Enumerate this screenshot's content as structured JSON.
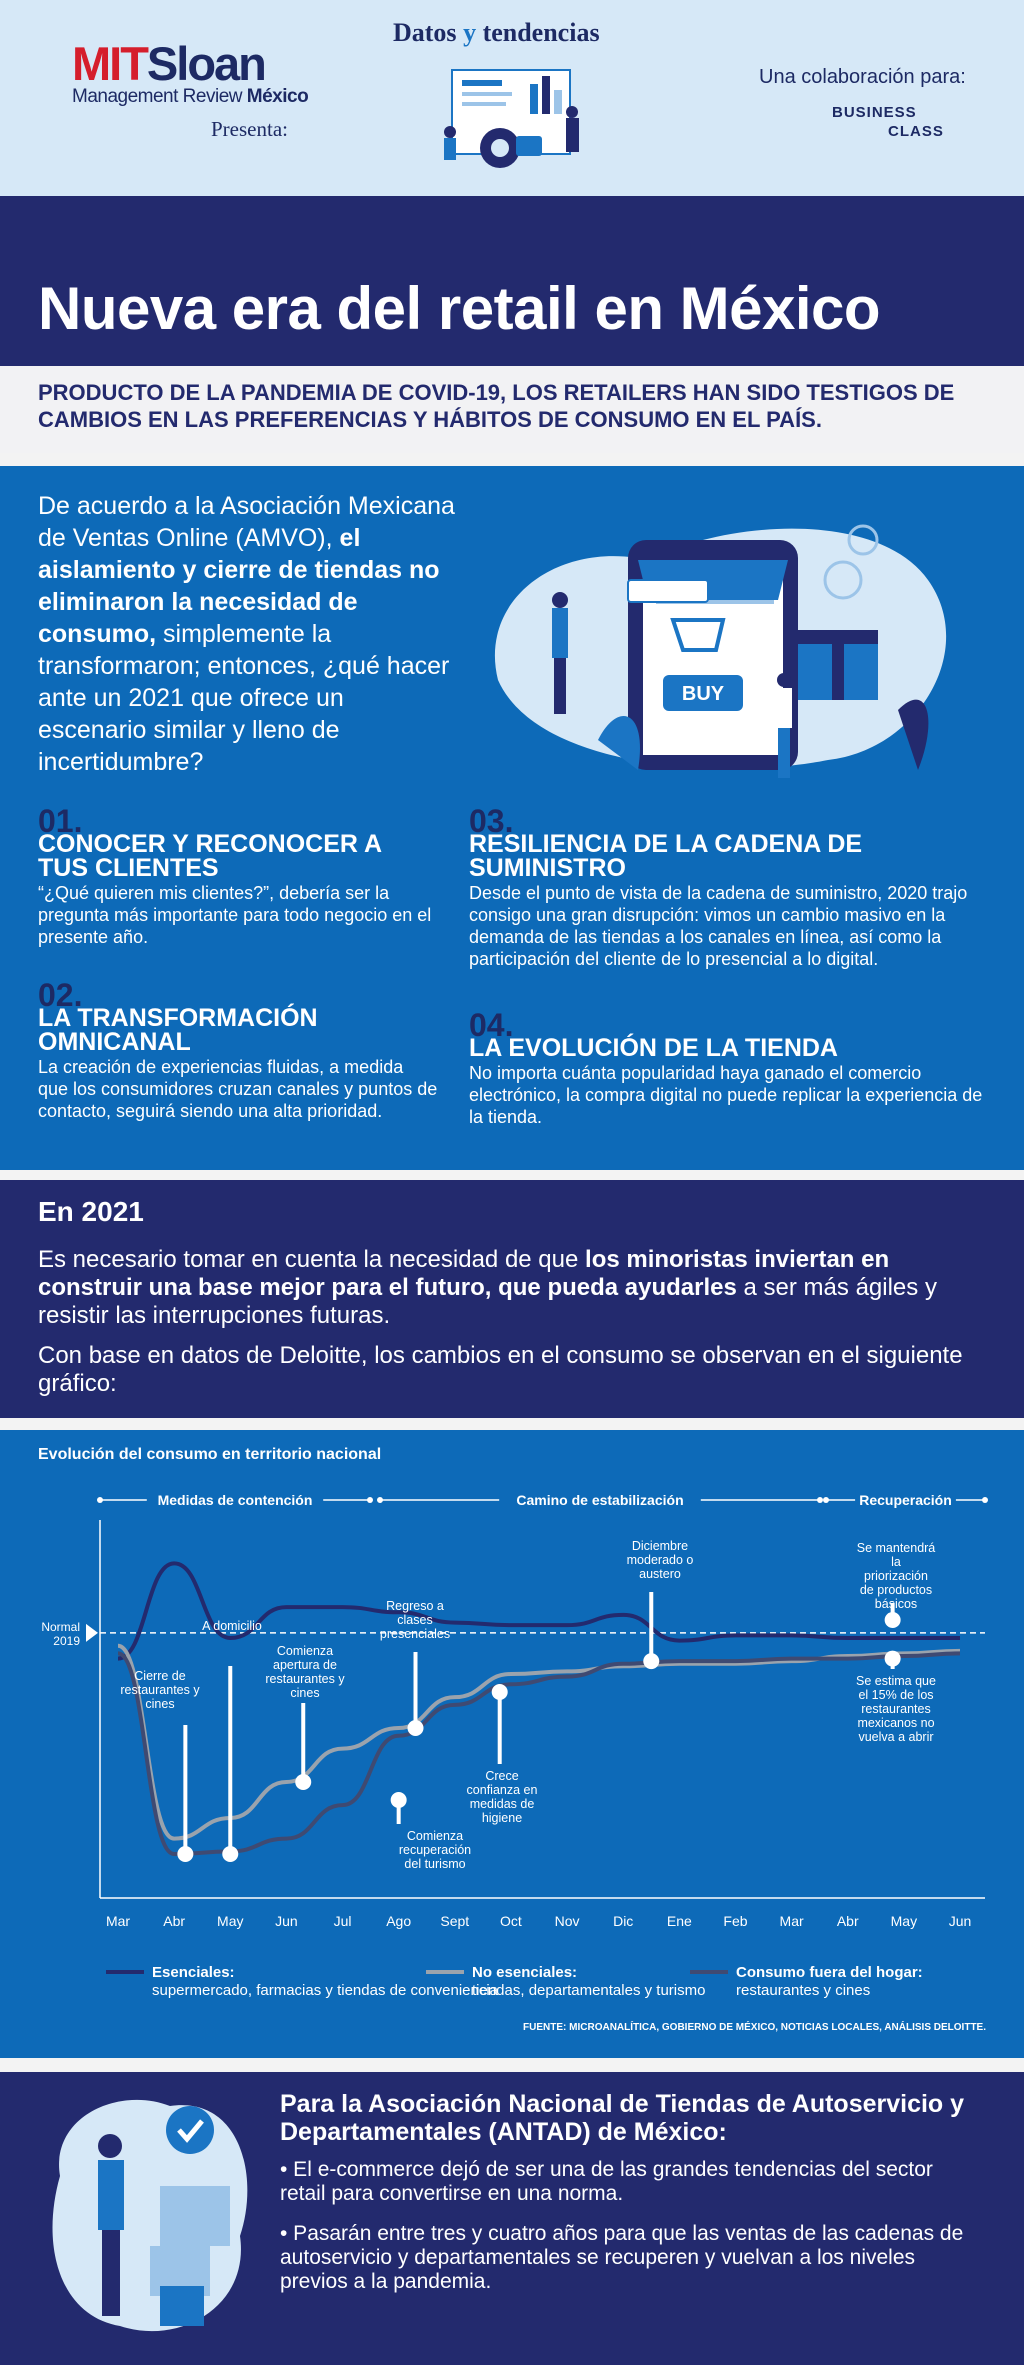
{
  "header": {
    "logo_mit": "MIT",
    "logo_sloan": "Sloan",
    "logo_mgmt": "Management Review",
    "logo_mexico": "México",
    "presenta": "Presenta:",
    "datos": "Datos",
    "y": "y",
    "tendencias": "tendencias",
    "collab": "Una colaboración para:",
    "business": "BUSINESS",
    "class": "CLASS"
  },
  "title": "Nueva era del retail en México",
  "subtitle": "PRODUCTO DE LA PANDEMIA DE COVID-19, LOS RETAILERS HAN SIDO TESTIGOS DE CAMBIOS EN LAS PREFERENCIAS Y HÁBITOS DE CONSUMO EN EL PAÍS.",
  "intro": {
    "p_a": "De acuerdo a la Asociación Mexicana de Ventas Online (AMVO),",
    "p_b": "el aislamiento y cierre de tiendas no eliminaron la necesidad de consumo,",
    "p_c": "simplemente la transformaron; entonces, ¿qué hacer ante un 2021 que ofrece un escenario similar y lleno de incertidumbre?",
    "buy": "BUY"
  },
  "items": [
    {
      "num": "01.",
      "head": "CONOCER Y RECONOCER A TUS CLIENTES",
      "body": "“¿Qué quieren mis clientes?”, debería ser la pregunta más importante para todo negocio en el presente año."
    },
    {
      "num": "02.",
      "head": "LA TRANSFORMACIÓN OMNICANAL",
      "body": "La creación de experiencias fluidas, a medida que los consumidores cruzan canales y puntos de contacto, seguirá siendo una alta prioridad."
    },
    {
      "num": "03.",
      "head": "RESILIENCIA DE LA CADENA DE SUMINISTRO",
      "body": "Desde el punto de vista de la cadena de suministro, 2020 trajo consigo una gran disrupción: vimos un cambio masivo en la demanda de las tiendas a los canales en línea, así como la participación del cliente de lo presencial a lo digital."
    },
    {
      "num": "04.",
      "head": "LA EVOLUCIÓN DE LA TIENDA",
      "body": "No importa cuánta popularidad haya ganado el comercio electrónico, la compra digital no puede replicar la experiencia de la tienda."
    }
  ],
  "en2021": {
    "title": "En 2021",
    "p1a": "Es necesario tomar en cuenta la necesidad de que",
    "p1b": "los minoristas inviertan en construir una base mejor para el futuro, que pueda ayudarles",
    "p1c": "a ser más ágiles y resistir las interrupciones futuras.",
    "p2": "Con base en datos de Deloitte, los cambios en el consumo se observan en el siguiente gráfico:"
  },
  "chart_data": {
    "type": "line",
    "title": "Evolución del consumo en territorio nacional",
    "phases": [
      "Medidas de contención",
      "Camino de estabilización",
      "Recuperación"
    ],
    "categories": [
      "Mar",
      "Abr",
      "May",
      "Jun",
      "Jul",
      "Ago",
      "Sept",
      "Oct",
      "Nov",
      "Dic",
      "Ene",
      "Feb",
      "Mar",
      "Abr",
      "May",
      "Jun"
    ],
    "baseline_label": "Normal 2019",
    "series": [
      {
        "name": "Esenciales",
        "color": "#232a6e",
        "values": [
          90,
          127,
          98,
          110,
          110,
          108,
          104,
          103,
          103,
          107,
          97,
          99,
          99,
          98,
          98,
          98
        ]
      },
      {
        "name": "No esenciales",
        "color": "#9aa3ad",
        "values": [
          95,
          20,
          28,
          42,
          55,
          63,
          75,
          84,
          85,
          87,
          88,
          88,
          89,
          91,
          92,
          93
        ]
      },
      {
        "name": "Consumo fuera del hogar",
        "color": "#3f4a72",
        "values": [
          92,
          14,
          15,
          20,
          33,
          60,
          72,
          80,
          83,
          88,
          89,
          89,
          90,
          90,
          91,
          92
        ]
      }
    ],
    "annotations": [
      "Cierre de restaurantes y cines",
      "A domicilio",
      "Comienza apertura de restaurantes y cines",
      "Regreso a clases presenciales",
      "Comienza recuperación del turismo",
      "Crece confianza en medidas de higiene",
      "Diciembre moderado o austero",
      "Se mantendrá la priorización de productos básicos",
      "Se estima que el 15% de los restaurantes mexicanos no vuelva a abrir"
    ],
    "legend": [
      {
        "bold": "Esenciales:",
        "text": "supermercado, farmacias y tiendas de conveniencia"
      },
      {
        "bold": "No esenciales:",
        "text": "tiendas, departamentales y turismo"
      },
      {
        "bold": "Consumo fuera del hogar:",
        "text": "restaurantes y cines"
      }
    ],
    "source": "FUENTE: MICROANALÍTICA, GOBIERNO DE MÉXICO, NOTICIAS LOCALES, ANÁLISIS DELOITTE."
  },
  "antad": {
    "title": "Para la Asociación Nacional de Tiendas de Autoservicio y Departamentales (ANTAD) de México:",
    "b1": "• El e-commerce dejó de ser una de las grandes tendencias del sector retail para convertirse en una norma.",
    "b2": "• Pasarán entre tres y cuatro años para que las ventas de las cadenas de autoservicio y departamentales se recuperen y vuelvan a los niveles previos a la pandemia."
  },
  "colors": {
    "navy": "#232a6e",
    "blue": "#0d6ab8",
    "light": "#d6e8f7",
    "red": "#d51e2c"
  }
}
